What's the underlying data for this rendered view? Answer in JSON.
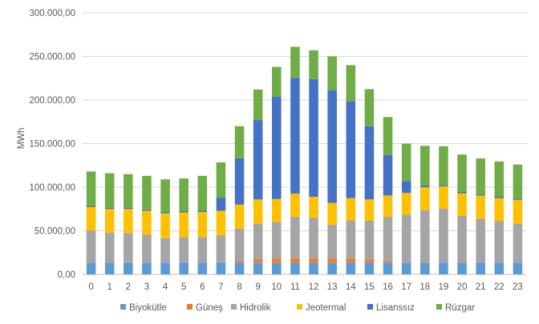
{
  "chart_data": {
    "type": "bar",
    "stacked": true,
    "title": "",
    "xlabel": "",
    "ylabel": "MWh",
    "ylim": [
      0,
      300000
    ],
    "yticks": [
      0,
      50000,
      100000,
      150000,
      200000,
      250000,
      300000
    ],
    "ytick_labels": [
      "0,00",
      "50.000,00",
      "100.000,00",
      "150.000,00",
      "200.000,00",
      "250.000,00",
      "300.000,00"
    ],
    "grid": true,
    "legend_position": "bottom",
    "categories": [
      "0",
      "1",
      "2",
      "3",
      "4",
      "5",
      "6",
      "7",
      "8",
      "9",
      "10",
      "11",
      "12",
      "13",
      "14",
      "15",
      "16",
      "17",
      "18",
      "19",
      "20",
      "21",
      "22",
      "23"
    ],
    "series": [
      {
        "name": "Biyokütle",
        "color": "#5B9BD5",
        "values": [
          13500,
          13500,
          13500,
          13500,
          13500,
          13500,
          13500,
          13500,
          13500,
          13500,
          13500,
          13500,
          13500,
          13500,
          13500,
          13500,
          13500,
          13500,
          13500,
          13500,
          13500,
          13500,
          13500,
          13500
        ]
      },
      {
        "name": "Güneş",
        "color": "#ED7D31",
        "values": [
          0,
          0,
          0,
          0,
          0,
          0,
          0,
          500,
          2000,
          4000,
          5000,
          5000,
          5000,
          5000,
          4500,
          3500,
          2000,
          500,
          0,
          0,
          0,
          0,
          0,
          0
        ]
      },
      {
        "name": "Hidrolik",
        "color": "#A5A5A5",
        "values": [
          37000,
          34500,
          34000,
          32000,
          28000,
          29000,
          29500,
          31000,
          37000,
          41000,
          41500,
          47500,
          46500,
          38500,
          44000,
          44500,
          50500,
          54500,
          60000,
          62000,
          53500,
          50500,
          47500,
          45000
        ]
      },
      {
        "name": "Jeotermal",
        "color": "#FFC000",
        "values": [
          27000,
          27000,
          27500,
          27500,
          28500,
          28500,
          28500,
          28000,
          27500,
          27500,
          26500,
          26500,
          24000,
          25000,
          25500,
          24500,
          24500,
          25000,
          26500,
          25500,
          26000,
          26500,
          26500,
          27000
        ]
      },
      {
        "name": "Lisanssız",
        "color": "#4472C4",
        "values": [
          1500,
          1500,
          1500,
          1500,
          1500,
          1500,
          1500,
          15000,
          53000,
          91000,
          117500,
          133000,
          135000,
          129000,
          111000,
          84000,
          46500,
          13500,
          2000,
          1500,
          1500,
          1500,
          1500,
          1500
        ]
      },
      {
        "name": "Rüzgar",
        "color": "#70AD47",
        "values": [
          39000,
          39500,
          38500,
          38500,
          37500,
          37500,
          40000,
          40500,
          37000,
          35000,
          34000,
          35500,
          33000,
          39000,
          41500,
          42500,
          43500,
          43000,
          45500,
          44500,
          43000,
          41000,
          40500,
          39000
        ]
      }
    ]
  }
}
